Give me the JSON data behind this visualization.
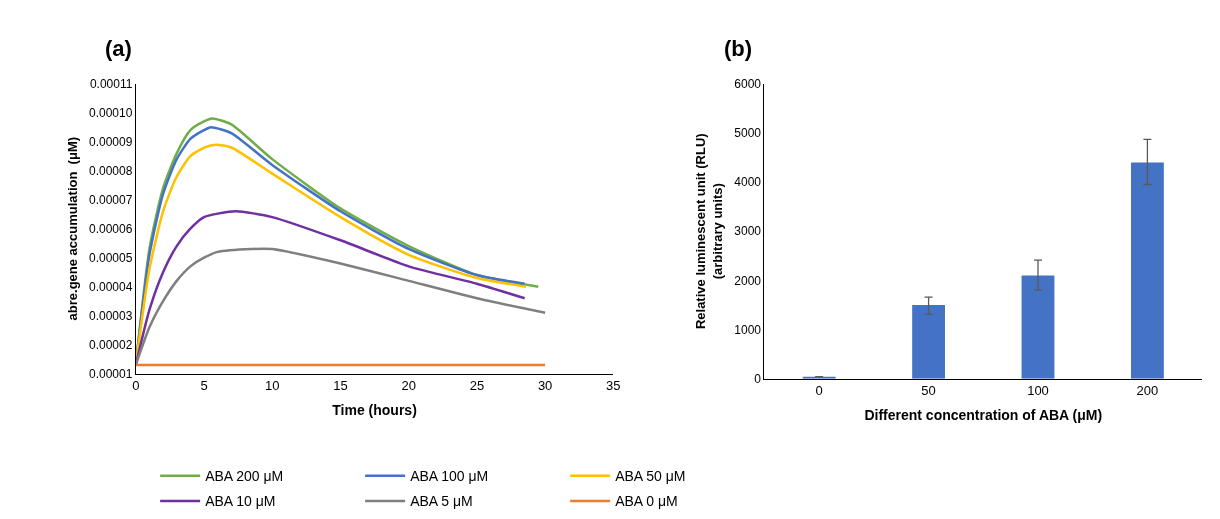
{
  "chart_data": [
    {
      "type": "line",
      "title": "(a)",
      "xlabel": "Time (hours)",
      "ylabel": "abre.gene accumulation  (μM)",
      "xlim": [
        0,
        35
      ],
      "xticks": [
        0,
        5,
        10,
        15,
        20,
        25,
        30,
        35
      ],
      "ylim": [
        1e-05,
        0.00011
      ],
      "yticks": [
        {
          "value": 1e-05,
          "label": "0.00001"
        },
        {
          "value": 2e-05,
          "label": "0.00002"
        },
        {
          "value": 3e-05,
          "label": "0.00003"
        },
        {
          "value": 4e-05,
          "label": "0.00004"
        },
        {
          "value": 5e-05,
          "label": "0.00005"
        },
        {
          "value": 6e-05,
          "label": "0.00006"
        },
        {
          "value": 7e-05,
          "label": "0.00007"
        },
        {
          "value": 8e-05,
          "label": "0.00008"
        },
        {
          "value": 9e-05,
          "label": "0.00009"
        },
        {
          "value": 0.0001,
          "label": "0.00010"
        },
        {
          "value": 0.00011,
          "label": "0.00011"
        }
      ],
      "legend": "bottom",
      "marker": "none",
      "line_style": "solid",
      "series": [
        {
          "name": "ABA 200 μM",
          "color": "#70ad47",
          "x": [
            0,
            1,
            2,
            3,
            4,
            5,
            5.6,
            7,
            10,
            15,
            20,
            25,
            29.5
          ],
          "values": [
            1.3e-05,
            5.3e-05,
            7.4e-05,
            8.6e-05,
            9.4e-05,
            9.7e-05,
            9.8e-05,
            9.6e-05,
            8.4e-05,
            6.7e-05,
            5.4e-05,
            4.4e-05,
            4e-05
          ]
        },
        {
          "name": "ABA 100 μM",
          "color": "#4472c4",
          "x": [
            0,
            1,
            2,
            3,
            4,
            5,
            5.5,
            7,
            10,
            15,
            20,
            25,
            28.5
          ],
          "values": [
            1.3e-05,
            5.1e-05,
            7.2e-05,
            8.4e-05,
            9.1e-05,
            9.4e-05,
            9.5e-05,
            9.3e-05,
            8.2e-05,
            6.6e-05,
            5.3e-05,
            4.4e-05,
            4.1e-05
          ]
        },
        {
          "name": "ABA 50 μM",
          "color": "#ffc000",
          "x": [
            0,
            1,
            2,
            3,
            4,
            5,
            5.9,
            7,
            10,
            15,
            20,
            25,
            28.6
          ],
          "values": [
            1.3e-05,
            4.6e-05,
            6.6e-05,
            7.8e-05,
            8.5e-05,
            8.8e-05,
            8.9e-05,
            8.8e-05,
            7.9e-05,
            6.4e-05,
            5.1e-05,
            4.3e-05,
            4e-05
          ]
        },
        {
          "name": "ABA 10 μM",
          "color": "#7030a0",
          "x": [
            0,
            1,
            2,
            3,
            4,
            5,
            7.3,
            10,
            15,
            20,
            25,
            28.5
          ],
          "values": [
            1.3e-05,
            3.2e-05,
            4.5e-05,
            5.4e-05,
            6e-05,
            6.4e-05,
            6.6e-05,
            6.4e-05,
            5.6e-05,
            4.7e-05,
            4.1e-05,
            3.6e-05
          ]
        },
        {
          "name": "ABA 5 μM",
          "color": "#7f7f7f",
          "x": [
            0,
            1,
            2,
            3,
            4,
            5,
            6,
            8.5,
            10,
            15,
            20,
            25,
            30
          ],
          "values": [
            1.3e-05,
            2.6e-05,
            3.5e-05,
            4.2e-05,
            4.7e-05,
            5e-05,
            5.2e-05,
            5.3e-05,
            5.3e-05,
            4.8e-05,
            4.2e-05,
            3.6e-05,
            3.1e-05
          ]
        },
        {
          "name": "ABA 0 μM",
          "color": "#ed7d31",
          "x": [
            0,
            30
          ],
          "values": [
            1.3e-05,
            1.3e-05
          ]
        }
      ]
    },
    {
      "type": "bar",
      "title": "(b)",
      "xlabel": "Different concentration of ABA (μM)",
      "ylabel": "Relative luminescent unit (RLU)\n(arbitrary units)",
      "categories": [
        "0",
        "50",
        "100",
        "200"
      ],
      "ylim": [
        0,
        6000
      ],
      "yticks": [
        0,
        1000,
        2000,
        3000,
        4000,
        5000,
        6000
      ],
      "legend": false,
      "series": [
        {
          "color": "#4472c4",
          "values": [
            40,
            1500,
            2100,
            4400
          ],
          "errors": [
            null,
            [
              1310,
              1660
            ],
            [
              1800,
              2410
            ],
            [
              3950,
              4870
            ]
          ]
        }
      ]
    }
  ]
}
